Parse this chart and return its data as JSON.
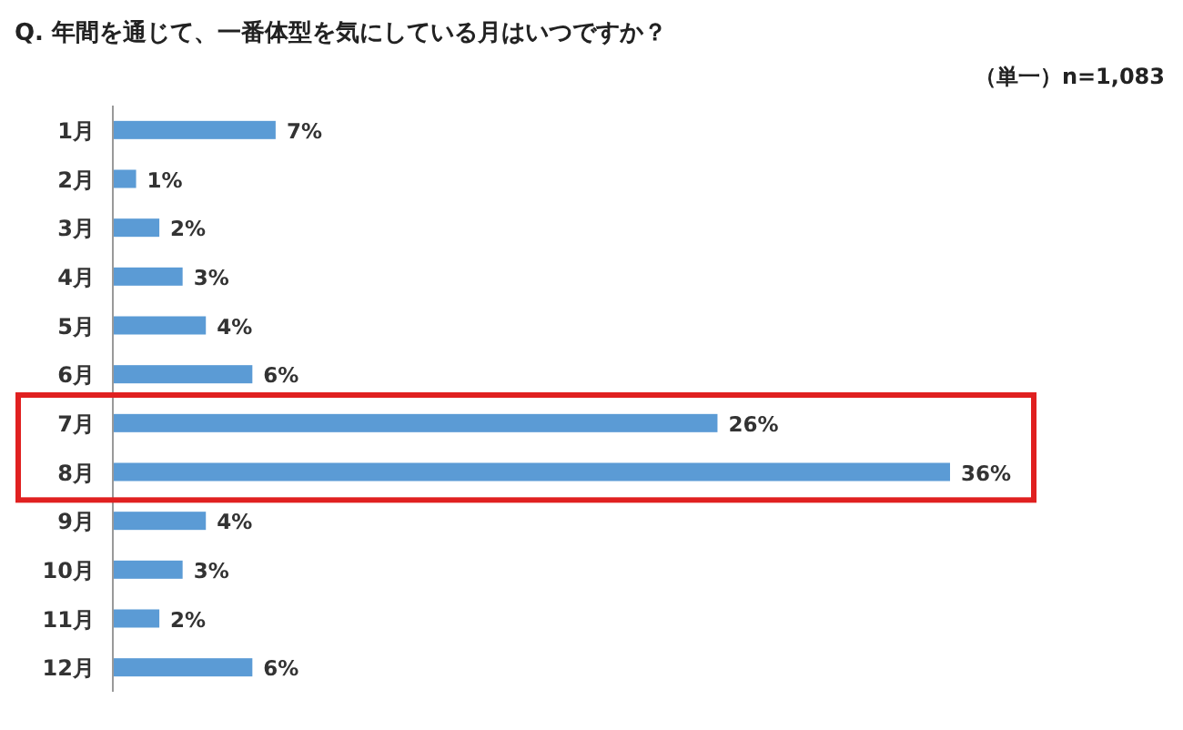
{
  "chart_data": {
    "type": "bar",
    "orientation": "horizontal",
    "title": "Q. 年間を通じて、一番体型を気にしている月はいつですか？",
    "subtitle": "（単一）n=1,083",
    "categories": [
      "1月",
      "2月",
      "3月",
      "4月",
      "5月",
      "6月",
      "7月",
      "8月",
      "9月",
      "10月",
      "11月",
      "12月"
    ],
    "values": [
      7,
      1,
      2,
      3,
      4,
      6,
      26,
      36,
      4,
      3,
      2,
      6
    ],
    "value_labels": [
      "7%",
      "1%",
      "2%",
      "3%",
      "4%",
      "6%",
      "26%",
      "36%",
      "4%",
      "3%",
      "2%",
      "6%"
    ],
    "color": "#5b9bd5"
  }
}
